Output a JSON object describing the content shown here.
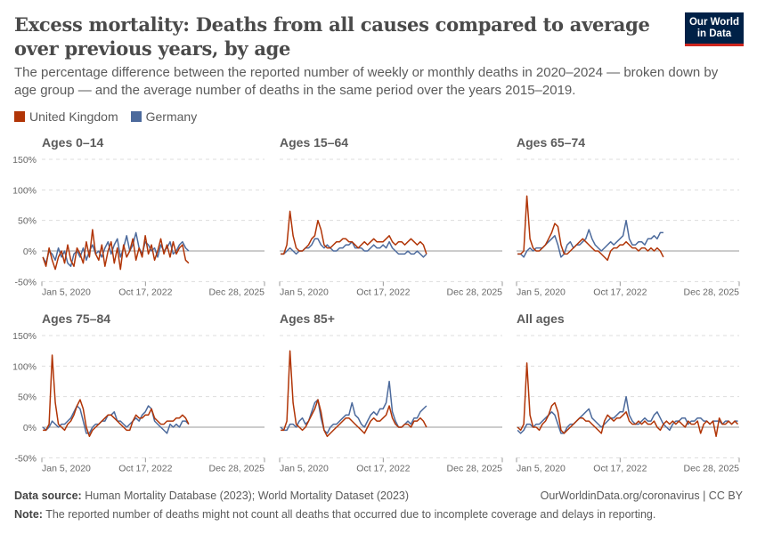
{
  "header": {
    "title": "Excess mortality: Deaths from all causes compared to average over previous years, by age",
    "subtitle": "The percentage difference between the reported number of weekly or monthly deaths in 2020–2024 — broken down by age group — and the average number of deaths in the same period over the years 2015–2019.",
    "logo_text": "Our World in Data"
  },
  "footer": {
    "source_label": "Data source:",
    "source_text": "Human Mortality Database (2023); World Mortality Dataset (2023)",
    "url_text": "OurWorldinData.org/coronavirus | CC BY",
    "note_label": "Note:",
    "note_text": "The reported number of deaths might not count all deaths that occurred due to incomplete coverage and delays in reporting."
  },
  "chart_data": {
    "type": "line",
    "legend_position": "top-left",
    "grid": "horizontal dashed",
    "legend": [
      {
        "name": "United Kingdom",
        "color": "#b13507"
      },
      {
        "name": "Germany",
        "color": "#4c6a9c"
      }
    ],
    "y_ticks": [
      "-50%",
      "0%",
      "50%",
      "100%",
      "150%"
    ],
    "y_tick_values": [
      -50,
      0,
      50,
      100,
      150
    ],
    "ylim": [
      -50,
      150
    ],
    "xlim": [
      "2020-01-05",
      "2025-12-28"
    ],
    "x_ticks": [
      {
        "label": "Jan 5, 2020",
        "date": "2020-01-05"
      },
      {
        "label": "Oct 17, 2022",
        "date": "2022-10-17"
      },
      {
        "label": "Dec 28, 2025",
        "date": "2025-12-28"
      }
    ],
    "dates": [
      "2020-01",
      "2020-02",
      "2020-03",
      "2020-04",
      "2020-05",
      "2020-06",
      "2020-07",
      "2020-08",
      "2020-09",
      "2020-10",
      "2020-11",
      "2020-12",
      "2021-01",
      "2021-02",
      "2021-03",
      "2021-04",
      "2021-05",
      "2021-06",
      "2021-07",
      "2021-08",
      "2021-09",
      "2021-10",
      "2021-11",
      "2021-12",
      "2022-01",
      "2022-02",
      "2022-03",
      "2022-04",
      "2022-05",
      "2022-06",
      "2022-07",
      "2022-08",
      "2022-09",
      "2022-10",
      "2022-11",
      "2022-12",
      "2023-01",
      "2023-02",
      "2023-03",
      "2023-04",
      "2023-05",
      "2023-06",
      "2023-07",
      "2023-08",
      "2023-09",
      "2023-10",
      "2023-11",
      "2023-12",
      "2024-01",
      "2024-02",
      "2024-03",
      "2024-04",
      "2024-05",
      "2024-06",
      "2024-07",
      "2024-08",
      "2024-09",
      "2024-10",
      "2024-11",
      "2024-12",
      "2025-01",
      "2025-02",
      "2025-03",
      "2025-04",
      "2025-05",
      "2025-06",
      "2025-07",
      "2025-08",
      "2025-09",
      "2025-10",
      "2025-11",
      "2025-12"
    ],
    "panels": [
      {
        "title": "Ages 0–14",
        "series": [
          {
            "name": "Germany",
            "values": [
              -10,
              -20,
              0,
              -5,
              -15,
              5,
              -10,
              0,
              -20,
              -25,
              -5,
              0,
              -10,
              5,
              -15,
              0,
              10,
              -5,
              0,
              -10,
              5,
              15,
              -5,
              10,
              20,
              -10,
              5,
              25,
              0,
              10,
              30,
              5,
              -5,
              15,
              10,
              0,
              5,
              -10,
              10,
              0,
              5,
              15,
              -5,
              0,
              10,
              15,
              5,
              0
            ]
          },
          {
            "name": "United Kingdom",
            "values": [
              -10,
              -25,
              5,
              -15,
              -30,
              -10,
              0,
              -20,
              10,
              -15,
              -25,
              5,
              -5,
              -20,
              15,
              -10,
              35,
              -5,
              -15,
              10,
              -25,
              0,
              15,
              -20,
              5,
              -30,
              10,
              -10,
              0,
              20,
              -15,
              5,
              -10,
              25,
              -5,
              10,
              -15,
              0,
              20,
              -5,
              10,
              -10,
              15,
              -5,
              5,
              10,
              -15,
              -20
            ]
          }
        ]
      },
      {
        "title": "Ages 15–64",
        "series": [
          {
            "name": "Germany",
            "values": [
              -5,
              -5,
              0,
              5,
              0,
              -5,
              0,
              0,
              5,
              5,
              10,
              20,
              20,
              10,
              5,
              10,
              5,
              0,
              0,
              5,
              5,
              10,
              10,
              15,
              5,
              5,
              5,
              0,
              0,
              5,
              10,
              5,
              5,
              10,
              5,
              15,
              5,
              0,
              -5,
              -5,
              -5,
              0,
              -5,
              -5,
              0,
              -5,
              -10,
              -5
            ]
          },
          {
            "name": "United Kingdom",
            "values": [
              -5,
              -5,
              10,
              65,
              25,
              5,
              0,
              0,
              5,
              10,
              20,
              25,
              50,
              35,
              10,
              5,
              5,
              10,
              15,
              15,
              20,
              20,
              15,
              15,
              10,
              5,
              10,
              15,
              10,
              15,
              20,
              15,
              15,
              15,
              20,
              25,
              15,
              10,
              15,
              15,
              10,
              15,
              20,
              15,
              10,
              15,
              10,
              -5
            ]
          }
        ]
      },
      {
        "title": "Ages 65–74",
        "series": [
          {
            "name": "Germany",
            "values": [
              -5,
              -5,
              -10,
              0,
              5,
              0,
              5,
              5,
              5,
              10,
              15,
              20,
              25,
              10,
              -10,
              -5,
              10,
              15,
              5,
              10,
              10,
              15,
              20,
              35,
              20,
              10,
              5,
              0,
              5,
              10,
              15,
              10,
              15,
              20,
              25,
              50,
              20,
              10,
              10,
              15,
              15,
              10,
              20,
              20,
              25,
              20,
              30,
              30
            ]
          },
          {
            "name": "United Kingdom",
            "values": [
              -5,
              -5,
              0,
              90,
              20,
              5,
              0,
              0,
              5,
              10,
              20,
              30,
              45,
              40,
              10,
              -5,
              -5,
              0,
              5,
              10,
              15,
              20,
              15,
              10,
              5,
              0,
              0,
              -5,
              -10,
              -15,
              0,
              5,
              5,
              10,
              10,
              15,
              10,
              5,
              5,
              0,
              5,
              5,
              0,
              5,
              0,
              5,
              0,
              -10
            ]
          }
        ]
      },
      {
        "title": "Ages 75–84",
        "series": [
          {
            "name": "Germany",
            "values": [
              0,
              -5,
              0,
              10,
              5,
              0,
              5,
              5,
              10,
              15,
              25,
              35,
              30,
              10,
              -10,
              -10,
              0,
              5,
              5,
              10,
              10,
              20,
              20,
              25,
              10,
              10,
              5,
              0,
              5,
              10,
              15,
              10,
              20,
              25,
              35,
              30,
              10,
              5,
              0,
              -5,
              -10,
              5,
              0,
              5,
              0,
              10,
              10,
              5
            ]
          },
          {
            "name": "United Kingdom",
            "values": [
              -5,
              -5,
              5,
              118,
              40,
              5,
              0,
              -5,
              5,
              10,
              20,
              35,
              45,
              30,
              0,
              -15,
              -5,
              0,
              5,
              10,
              15,
              20,
              20,
              15,
              10,
              5,
              0,
              -5,
              -5,
              10,
              20,
              15,
              15,
              20,
              20,
              30,
              15,
              10,
              5,
              5,
              10,
              10,
              10,
              15,
              15,
              20,
              15,
              5
            ]
          }
        ]
      },
      {
        "title": "Ages 85+",
        "series": [
          {
            "name": "Germany",
            "values": [
              0,
              -5,
              -5,
              5,
              5,
              0,
              10,
              15,
              5,
              10,
              25,
              40,
              45,
              15,
              -5,
              -10,
              0,
              5,
              5,
              10,
              15,
              20,
              20,
              40,
              20,
              15,
              5,
              0,
              10,
              20,
              25,
              20,
              30,
              30,
              40,
              75,
              25,
              10,
              0,
              0,
              5,
              10,
              5,
              15,
              15,
              25,
              30,
              35
            ]
          },
          {
            "name": "United Kingdom",
            "values": [
              -5,
              -5,
              10,
              125,
              40,
              5,
              0,
              -5,
              0,
              10,
              20,
              30,
              45,
              25,
              -5,
              -15,
              -10,
              -5,
              0,
              5,
              10,
              15,
              15,
              10,
              5,
              0,
              -5,
              -10,
              0,
              10,
              15,
              10,
              10,
              15,
              20,
              35,
              15,
              5,
              0,
              0,
              5,
              5,
              0,
              10,
              10,
              15,
              10,
              0
            ]
          }
        ]
      },
      {
        "title": "All ages",
        "series": [
          {
            "name": "Germany",
            "values": [
              -5,
              -10,
              -5,
              5,
              5,
              0,
              5,
              5,
              10,
              15,
              20,
              25,
              20,
              5,
              -10,
              -10,
              0,
              5,
              5,
              10,
              15,
              20,
              25,
              30,
              15,
              10,
              5,
              0,
              5,
              10,
              15,
              15,
              20,
              25,
              25,
              50,
              20,
              10,
              5,
              5,
              10,
              15,
              10,
              10,
              20,
              25,
              15,
              5,
              0,
              -5,
              5,
              10,
              10,
              15,
              15,
              5,
              10,
              10,
              15,
              15,
              10,
              10,
              5,
              10,
              10,
              10,
              5,
              10,
              10,
              5,
              10,
              10
            ]
          },
          {
            "name": "United Kingdom",
            "values": [
              0,
              -5,
              5,
              105,
              20,
              0,
              0,
              -5,
              5,
              10,
              20,
              35,
              40,
              25,
              -5,
              -10,
              -5,
              0,
              5,
              10,
              15,
              15,
              10,
              10,
              5,
              0,
              -5,
              -10,
              10,
              20,
              15,
              10,
              15,
              15,
              20,
              25,
              10,
              5,
              5,
              10,
              5,
              10,
              5,
              5,
              10,
              0,
              -5,
              5,
              10,
              5,
              10,
              5,
              10,
              5,
              0,
              10,
              5,
              5,
              10,
              -10,
              5,
              10,
              5,
              10,
              -15,
              15,
              5,
              5,
              10,
              5,
              10,
              5
            ]
          }
        ]
      }
    ]
  }
}
